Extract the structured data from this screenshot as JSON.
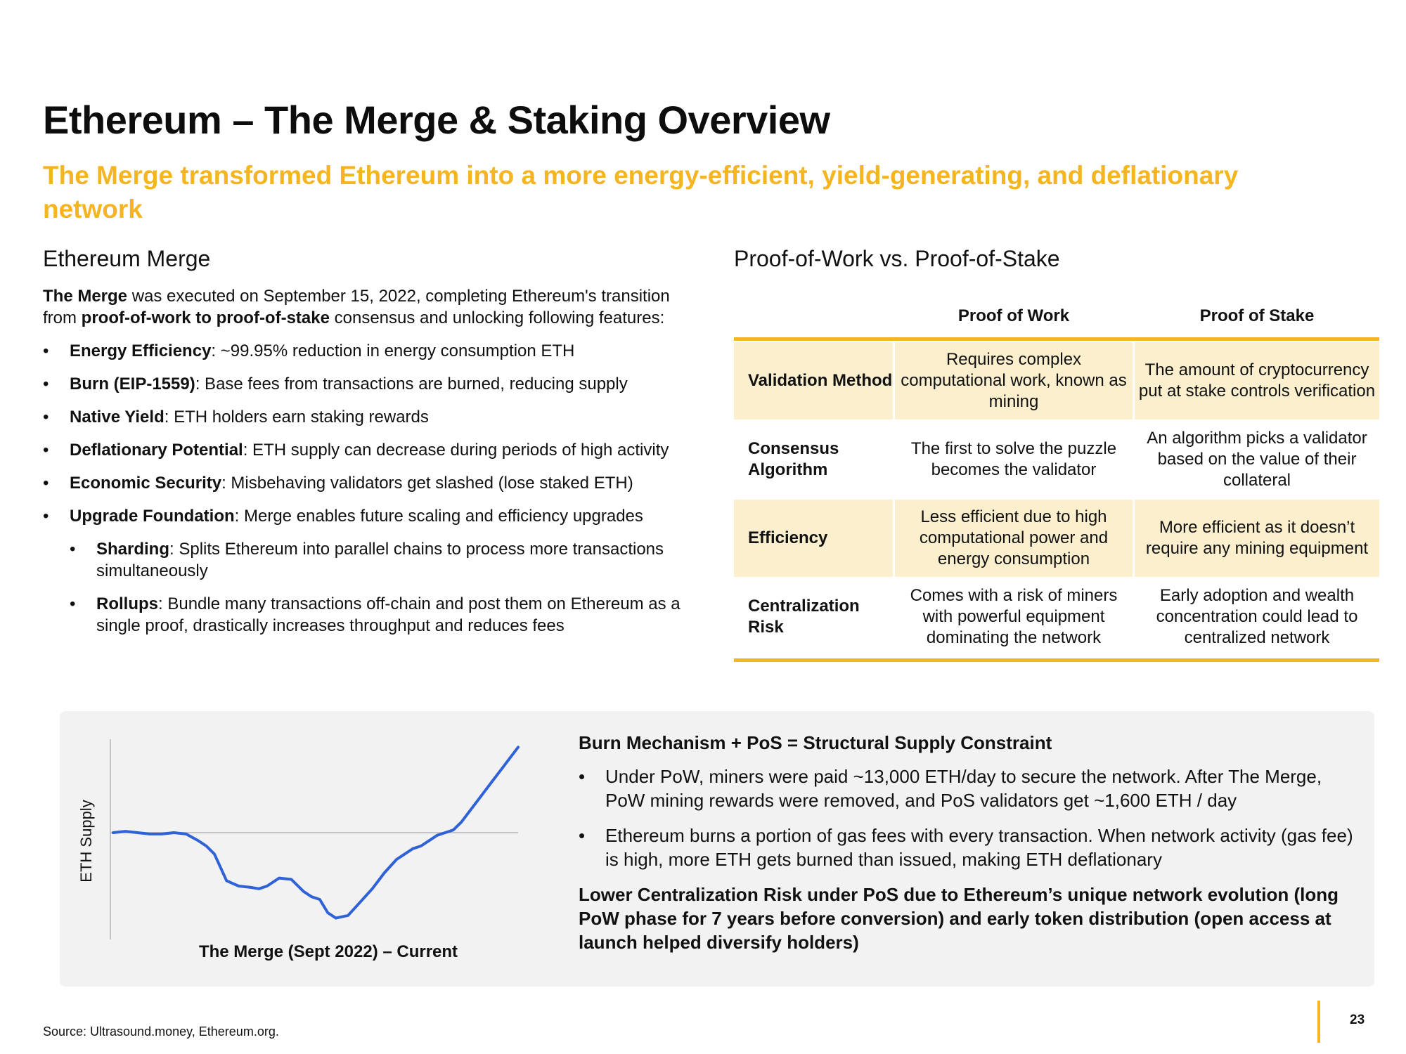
{
  "title": "Ethereum – The Merge & Staking Overview",
  "subtitle": "The Merge transformed Ethereum into a more energy-efficient, yield-generating, and deflationary network",
  "left": {
    "heading": "Ethereum Merge",
    "intro": {
      "lead_bold": "The Merge",
      "text1": " was executed on September 15, 2022, completing Ethereum's transition from ",
      "mid_bold": "proof-of-work to proof-of-stake",
      "text2": " consensus and unlocking following features:"
    },
    "bullets": [
      {
        "bold": "Energy Efficiency",
        "text": ": ~99.95% reduction in energy consumption ETH"
      },
      {
        "bold": "Burn (EIP-1559)",
        "text": ": Base fees from transactions are burned, reducing supply"
      },
      {
        "bold": "Native Yield",
        "text": ": ETH holders earn staking rewards"
      },
      {
        "bold": "Deflationary Potential",
        "text": ": ETH supply can decrease during periods of high activity"
      },
      {
        "bold": "Economic Security",
        "text": ": Misbehaving validators get slashed (lose staked ETH)"
      },
      {
        "bold": "Upgrade Foundation",
        "text": ": Merge enables future scaling and efficiency upgrades"
      }
    ],
    "sub_bullets": [
      {
        "bold": "Sharding",
        "text": ": Splits Ethereum into parallel chains to process more transactions simultaneously"
      },
      {
        "bold": "Rollups",
        "text": ": Bundle many transactions off-chain and post them on Ethereum as a single proof, drastically increases throughput and reduces fees"
      }
    ]
  },
  "comparison": {
    "heading": "Proof-of-Work vs. Proof-of-Stake",
    "col_headers": [
      "Proof of Work",
      "Proof of Stake"
    ],
    "rows": [
      {
        "label": "Validation Method",
        "pow": "Requires complex computational work, known as mining",
        "pos": "The amount of cryptocurrency put at stake controls verification"
      },
      {
        "label": "Consensus Algorithm",
        "pow": "The first to solve the puzzle becomes the validator",
        "pos": "An algorithm picks a validator based on the value of their collateral"
      },
      {
        "label": "Efficiency",
        "pow": "Less efficient due to high computational power and energy consumption",
        "pos": "More efficient as it doesn’t require any mining equipment"
      },
      {
        "label": "Centralization Risk",
        "pow": "Comes with a risk of miners with powerful equipment dominating the network",
        "pos": "Early adoption and wealth concentration could lead to centralized network"
      }
    ]
  },
  "chart_data": {
    "type": "line",
    "title": "",
    "xlabel": "The Merge (Sept 2022) – Current",
    "ylabel": "ETH Supply",
    "series": [
      {
        "name": "ETH Supply",
        "color": "#2f62d6",
        "x": [
          0,
          3,
          6,
          9,
          12,
          15,
          18,
          21,
          23,
          25,
          28,
          31,
          34,
          36,
          38,
          41,
          44,
          47,
          49,
          51,
          53,
          55,
          58,
          61,
          64,
          67,
          70,
          72,
          74,
          76,
          78,
          80,
          82,
          84,
          86,
          88,
          90,
          92,
          94,
          96,
          98,
          100
        ],
        "y": [
          0,
          0.5,
          0,
          -0.5,
          -0.5,
          0,
          -0.5,
          -3,
          -5,
          -8,
          -18,
          -20,
          -20.5,
          -21,
          -20,
          -17,
          -17.5,
          -22,
          -24,
          -25,
          -30,
          -32,
          -31,
          -26,
          -21,
          -15,
          -10,
          -8,
          -6,
          -5,
          -3,
          -1,
          0,
          1,
          4,
          8,
          12,
          16,
          20,
          24,
          28,
          32
        ]
      }
    ],
    "x_range": [
      0,
      100
    ],
    "y_range": [
      -40,
      35
    ],
    "baseline": 0
  },
  "supply": {
    "heading": "Burn Mechanism + PoS = Structural Supply Constraint",
    "bullets": [
      "Under PoW, miners were paid ~13,000 ETH/day to secure the network. After The Merge, PoW mining rewards were removed, and PoS validators get ~1,600 ETH / day",
      "Ethereum burns a portion of gas fees with every transaction. When network activity (gas fee) is high, more ETH gets burned than issued, making ETH deflationary"
    ],
    "conclusion": "Lower Centralization Risk under PoS due to Ethereum’s unique network evolution (long PoW phase for 7 years before conversion) and early token distribution (open access at launch helped diversify holders)"
  },
  "footer": {
    "source": "Source: Ultrasound.money, Ethereum.org.",
    "page_number": "23"
  },
  "colors": {
    "accent": "#f4b521",
    "shade": "#fcefcd",
    "line": "#2f62d6",
    "panel": "#f2f2f2"
  }
}
